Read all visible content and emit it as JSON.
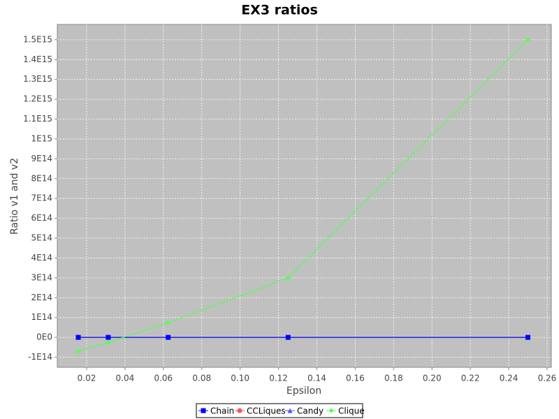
{
  "chart_data": {
    "type": "line",
    "title": "EX3 ratios",
    "x_label": "Epsilon",
    "y_label": "Ratio v1 and v2",
    "x": [
      0.015625,
      0.03125,
      0.0625,
      0.125,
      0.25
    ],
    "series": [
      {
        "name": "Chain",
        "color": "#0000ff",
        "marker": "square",
        "values": [
          0,
          0,
          0,
          0,
          0
        ]
      },
      {
        "name": "CCLiques",
        "color": "#ff5555",
        "marker": "circle",
        "values": [
          null,
          null,
          null,
          null,
          null
        ]
      },
      {
        "name": "Candy",
        "color": "#5555ff",
        "marker": "triangle",
        "values": [
          null,
          null,
          null,
          null,
          null
        ]
      },
      {
        "name": "Clique",
        "color": "#55ff55",
        "marker": "diamond",
        "values": [
          -70000000000000.0,
          -25000000000000.0,
          74000000000000.0,
          300000000000000.0,
          1500000000000000.0
        ]
      }
    ],
    "xlim": [
      0.0047,
      0.2622
    ],
    "ylim": [
      -151000000000000.0,
      1577000000000000.0
    ],
    "xticks": [
      0.02,
      0.04,
      0.06,
      0.08,
      {
        "value": 0.1,
        "label": "0.10"
      },
      0.12,
      0.14,
      0.16,
      0.18,
      {
        "value": 0.2,
        "label": "0.20"
      },
      0.22,
      0.24,
      0.26
    ],
    "yticks": [
      {
        "value": -100000000000000.0,
        "label": "-1E14"
      },
      {
        "value": 0,
        "label": "0E0"
      },
      {
        "value": 100000000000000.0,
        "label": "1E14"
      },
      {
        "value": 200000000000000.0,
        "label": "2E14"
      },
      {
        "value": 300000000000000.0,
        "label": "3E14"
      },
      {
        "value": 400000000000000.0,
        "label": "4E14"
      },
      {
        "value": 500000000000000.0,
        "label": "5E14"
      },
      {
        "value": 600000000000000.0,
        "label": "6E14"
      },
      {
        "value": 700000000000000.0,
        "label": "7E14"
      },
      {
        "value": 800000000000000.0,
        "label": "8E14"
      },
      {
        "value": 900000000000000.0,
        "label": "9E14"
      },
      {
        "value": 1000000000000000.0,
        "label": "1E15"
      },
      {
        "value": 1100000000000000.0,
        "label": "1.1E15"
      },
      {
        "value": 1200000000000000.0,
        "label": "1.2E15"
      },
      {
        "value": 1300000000000000.0,
        "label": "1.3E15"
      },
      {
        "value": 1400000000000000.0,
        "label": "1.4E15"
      },
      {
        "value": 1500000000000000.0,
        "label": "1.5E15"
      }
    ],
    "grid": true,
    "legend": "bottom"
  }
}
